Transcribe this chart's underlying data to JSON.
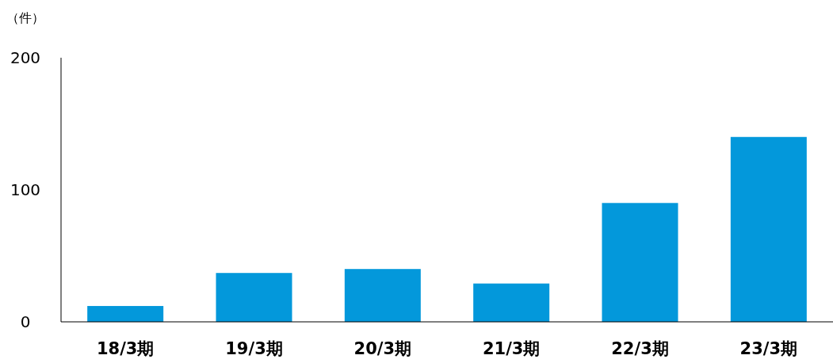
{
  "chart_data": {
    "type": "bar",
    "ylabel": "（件）",
    "categories": [
      "18/3期",
      "19/3期",
      "20/3期",
      "21/3期",
      "22/3期",
      "23/3期"
    ],
    "values": [
      12,
      37,
      40,
      29,
      90,
      140
    ],
    "color": "#0398db",
    "ylim": [
      0,
      200
    ],
    "yticks": [
      0,
      100,
      200
    ]
  }
}
